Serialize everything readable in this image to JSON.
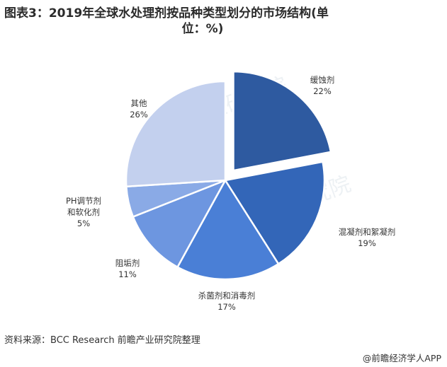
{
  "title": {
    "line1": "图表3：2019年全球水处理剂按品种类型划分的市场结构(单",
    "line2": "位：%)"
  },
  "chart_data": {
    "type": "pie",
    "title": "图表3：2019年全球水处理剂按品种类型划分的市场结构(单位：%)",
    "slices": [
      {
        "label": "缓蚀剂",
        "value": 22,
        "value_label": "22%",
        "color": "#2e5aa0",
        "exploded": true
      },
      {
        "label": "混凝剂和絮凝剂",
        "value": 19,
        "value_label": "19%",
        "color": "#3366b8"
      },
      {
        "label": "杀菌剂和消毒剂",
        "value": 17,
        "value_label": "17%",
        "color": "#4a7fd6"
      },
      {
        "label": "阻垢剂",
        "value": 11,
        "value_label": "11%",
        "color": "#6d96e0"
      },
      {
        "label": "PH调节剂和软化剂",
        "value": 5,
        "value_label": "5%",
        "color": "#8aaae6"
      },
      {
        "label": "其他",
        "value": 26,
        "value_label": "26%",
        "color": "#c3d0ee"
      }
    ]
  },
  "footer": {
    "source": "资料来源：BCC Research 前瞻产业研究院整理",
    "credit": "@前瞻经济学人APP"
  },
  "watermark": {
    "text": "前瞻产业研究院"
  }
}
